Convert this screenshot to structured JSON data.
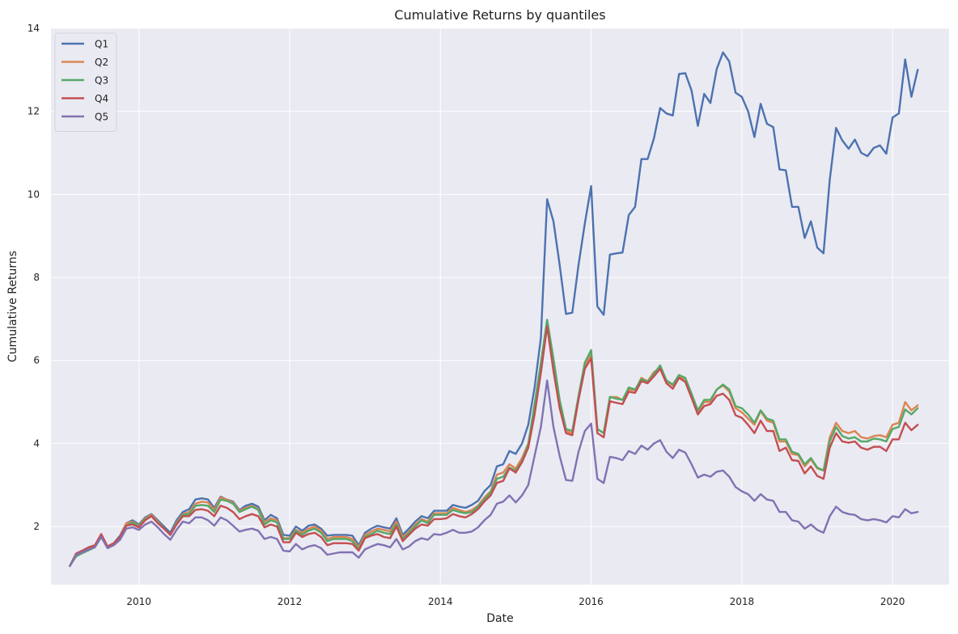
{
  "chart_data": {
    "type": "line",
    "title": "Cumulative Returns by quantiles",
    "xlabel": "Date",
    "ylabel": "Cumulative Returns",
    "xlim": [
      "2008-11-01",
      "2020-10-01"
    ],
    "ylim": [
      0.6,
      14
    ],
    "x_ticks": [
      "2010",
      "2012",
      "2014",
      "2016",
      "2018",
      "2020"
    ],
    "y_ticks": [
      2,
      4,
      6,
      8,
      10,
      12,
      14
    ],
    "grid": true,
    "legend": "top-left",
    "x": [
      "2009-02",
      "2009-03",
      "2009-04",
      "2009-05",
      "2009-06",
      "2009-07",
      "2009-08",
      "2009-09",
      "2009-10",
      "2009-11",
      "2009-12",
      "2010-01",
      "2010-02",
      "2010-03",
      "2010-04",
      "2010-05",
      "2010-06",
      "2010-07",
      "2010-08",
      "2010-09",
      "2010-10",
      "2010-11",
      "2010-12",
      "2011-01",
      "2011-02",
      "2011-03",
      "2011-04",
      "2011-05",
      "2011-06",
      "2011-07",
      "2011-08",
      "2011-09",
      "2011-10",
      "2011-11",
      "2011-12",
      "2012-01",
      "2012-02",
      "2012-03",
      "2012-04",
      "2012-05",
      "2012-06",
      "2012-07",
      "2012-08",
      "2012-09",
      "2012-10",
      "2012-11",
      "2012-12",
      "2013-01",
      "2013-02",
      "2013-03",
      "2013-04",
      "2013-05",
      "2013-06",
      "2013-07",
      "2013-08",
      "2013-09",
      "2013-10",
      "2013-11",
      "2013-12",
      "2014-01",
      "2014-02",
      "2014-03",
      "2014-04",
      "2014-05",
      "2014-06",
      "2014-07",
      "2014-08",
      "2014-09",
      "2014-10",
      "2014-11",
      "2014-12",
      "2015-01",
      "2015-02",
      "2015-03",
      "2015-04",
      "2015-05",
      "2015-06",
      "2015-07",
      "2015-08",
      "2015-09",
      "2015-10",
      "2015-11",
      "2015-12",
      "2016-01",
      "2016-02",
      "2016-03",
      "2016-04",
      "2016-05",
      "2016-06",
      "2016-07",
      "2016-08",
      "2016-09",
      "2016-10",
      "2016-11",
      "2016-12",
      "2017-01",
      "2017-02",
      "2017-03",
      "2017-04",
      "2017-05",
      "2017-06",
      "2017-07",
      "2017-08",
      "2017-09",
      "2017-10",
      "2017-11",
      "2017-12",
      "2018-01",
      "2018-02",
      "2018-03",
      "2018-04",
      "2018-05",
      "2018-06",
      "2018-07",
      "2018-08",
      "2018-09",
      "2018-10",
      "2018-11",
      "2018-12",
      "2019-01",
      "2019-02",
      "2019-03",
      "2019-04",
      "2019-05",
      "2019-06",
      "2019-07",
      "2019-08",
      "2019-09",
      "2019-10",
      "2019-11",
      "2019-12",
      "2020-01",
      "2020-02",
      "2020-03",
      "2020-04",
      "2020-05"
    ],
    "series": [
      {
        "name": "Q1",
        "color": "#4c72b0",
        "values": [
          1.05,
          1.33,
          1.42,
          1.5,
          1.55,
          1.78,
          1.52,
          1.6,
          1.78,
          2.08,
          2.15,
          2.05,
          2.22,
          2.3,
          2.15,
          2.0,
          1.85,
          2.15,
          2.35,
          2.42,
          2.65,
          2.68,
          2.65,
          2.45,
          2.72,
          2.65,
          2.6,
          2.4,
          2.5,
          2.55,
          2.48,
          2.15,
          2.28,
          2.2,
          1.8,
          1.78,
          2.0,
          1.9,
          2.02,
          2.05,
          1.95,
          1.78,
          1.8,
          1.8,
          1.8,
          1.78,
          1.55,
          1.85,
          1.95,
          2.02,
          1.98,
          1.95,
          2.2,
          1.8,
          1.95,
          2.12,
          2.25,
          2.2,
          2.38,
          2.38,
          2.38,
          2.52,
          2.48,
          2.45,
          2.52,
          2.62,
          2.85,
          3.0,
          3.45,
          3.5,
          3.82,
          3.75,
          4.0,
          4.45,
          5.35,
          6.55,
          9.88,
          9.35,
          8.3,
          7.12,
          7.15,
          8.3,
          9.3,
          10.2,
          7.3,
          7.1,
          8.55,
          8.58,
          8.6,
          9.5,
          9.7,
          10.85,
          10.85,
          11.35,
          12.08,
          11.95,
          11.9,
          12.9,
          12.92,
          12.5,
          11.65,
          12.42,
          12.2,
          13.02,
          13.42,
          13.2,
          12.45,
          12.35,
          12.0,
          11.38,
          12.18,
          11.7,
          11.62,
          10.6,
          10.58,
          9.7,
          9.7,
          8.95,
          9.35,
          8.72,
          8.58,
          10.35,
          11.6,
          11.3,
          11.1,
          11.32,
          11.0,
          10.92,
          11.12,
          11.18,
          10.98,
          11.85,
          11.95,
          13.25,
          12.35,
          13.0
        ]
      },
      {
        "name": "Q2",
        "color": "#dd8452",
        "values": [
          1.05,
          1.3,
          1.38,
          1.45,
          1.52,
          1.8,
          1.5,
          1.58,
          1.75,
          2.08,
          2.12,
          2.02,
          2.2,
          2.28,
          2.12,
          1.95,
          1.8,
          2.1,
          2.3,
          2.35,
          2.55,
          2.6,
          2.58,
          2.4,
          2.7,
          2.65,
          2.58,
          2.38,
          2.45,
          2.5,
          2.42,
          2.1,
          2.2,
          2.15,
          1.72,
          1.72,
          1.92,
          1.85,
          1.95,
          2.0,
          1.9,
          1.7,
          1.75,
          1.75,
          1.75,
          1.7,
          1.5,
          1.8,
          1.88,
          1.95,
          1.92,
          1.88,
          2.12,
          1.75,
          1.88,
          2.05,
          2.18,
          2.12,
          2.32,
          2.32,
          2.32,
          2.45,
          2.4,
          2.35,
          2.4,
          2.5,
          2.7,
          2.85,
          3.25,
          3.3,
          3.5,
          3.4,
          3.65,
          4.0,
          4.9,
          5.9,
          6.92,
          6.0,
          5.0,
          4.3,
          4.25,
          5.1,
          5.85,
          6.15,
          4.35,
          4.25,
          5.12,
          5.12,
          5.05,
          5.3,
          5.28,
          5.58,
          5.5,
          5.72,
          5.82,
          5.5,
          5.4,
          5.6,
          5.55,
          5.15,
          4.75,
          5.0,
          5.0,
          5.3,
          5.4,
          5.25,
          4.85,
          4.75,
          4.6,
          4.45,
          4.78,
          4.55,
          4.5,
          4.05,
          4.05,
          3.75,
          3.72,
          3.45,
          3.62,
          3.4,
          3.35,
          4.15,
          4.5,
          4.3,
          4.25,
          4.3,
          4.15,
          4.12,
          4.18,
          4.2,
          4.15,
          4.45,
          4.5,
          5.0,
          4.8,
          4.92
        ]
      },
      {
        "name": "Q3",
        "color": "#55a868",
        "values": [
          1.05,
          1.28,
          1.36,
          1.43,
          1.5,
          1.75,
          1.48,
          1.55,
          1.72,
          2.02,
          2.1,
          2.0,
          2.18,
          2.25,
          2.1,
          1.95,
          1.8,
          2.08,
          2.28,
          2.3,
          2.5,
          2.52,
          2.5,
          2.35,
          2.65,
          2.62,
          2.55,
          2.35,
          2.42,
          2.48,
          2.4,
          2.05,
          2.15,
          2.1,
          1.7,
          1.7,
          1.9,
          1.8,
          1.9,
          1.95,
          1.85,
          1.65,
          1.7,
          1.7,
          1.7,
          1.65,
          1.45,
          1.75,
          1.82,
          1.9,
          1.85,
          1.82,
          2.05,
          1.7,
          1.85,
          2.0,
          2.15,
          2.08,
          2.28,
          2.28,
          2.28,
          2.4,
          2.35,
          2.32,
          2.35,
          2.48,
          2.65,
          2.82,
          3.15,
          3.2,
          3.42,
          3.35,
          3.58,
          3.98,
          4.95,
          5.95,
          6.98,
          6.05,
          5.05,
          4.35,
          4.3,
          5.15,
          5.95,
          6.25,
          4.35,
          4.25,
          5.12,
          5.08,
          5.05,
          5.35,
          5.3,
          5.55,
          5.48,
          5.68,
          5.88,
          5.52,
          5.42,
          5.65,
          5.58,
          5.2,
          4.8,
          5.05,
          5.05,
          5.3,
          5.42,
          5.3,
          4.9,
          4.85,
          4.7,
          4.5,
          4.8,
          4.6,
          4.55,
          4.1,
          4.1,
          3.8,
          3.75,
          3.5,
          3.65,
          3.42,
          3.35,
          4.05,
          4.4,
          4.18,
          4.12,
          4.15,
          4.05,
          4.05,
          4.12,
          4.1,
          4.05,
          4.35,
          4.4,
          4.82,
          4.7,
          4.85
        ]
      },
      {
        "name": "Q4",
        "color": "#c44e52",
        "values": [
          1.05,
          1.35,
          1.42,
          1.5,
          1.55,
          1.82,
          1.52,
          1.6,
          1.75,
          2.02,
          2.05,
          1.98,
          2.15,
          2.25,
          2.08,
          1.95,
          1.8,
          2.05,
          2.25,
          2.25,
          2.4,
          2.42,
          2.38,
          2.25,
          2.5,
          2.45,
          2.35,
          2.18,
          2.25,
          2.3,
          2.25,
          1.98,
          2.05,
          2.0,
          1.62,
          1.62,
          1.85,
          1.75,
          1.82,
          1.85,
          1.75,
          1.55,
          1.6,
          1.6,
          1.6,
          1.58,
          1.42,
          1.72,
          1.78,
          1.82,
          1.75,
          1.72,
          2.0,
          1.65,
          1.8,
          1.95,
          2.05,
          2.02,
          2.18,
          2.18,
          2.2,
          2.3,
          2.25,
          2.22,
          2.3,
          2.42,
          2.6,
          2.75,
          3.05,
          3.1,
          3.4,
          3.3,
          3.55,
          3.9,
          4.7,
          5.7,
          6.82,
          5.75,
          4.85,
          4.25,
          4.2,
          5.05,
          5.8,
          6.05,
          4.25,
          4.15,
          5.02,
          4.98,
          4.95,
          5.25,
          5.22,
          5.5,
          5.45,
          5.62,
          5.8,
          5.45,
          5.32,
          5.58,
          5.48,
          5.1,
          4.7,
          4.9,
          4.95,
          5.15,
          5.2,
          5.05,
          4.68,
          4.62,
          4.45,
          4.25,
          4.55,
          4.3,
          4.3,
          3.82,
          3.9,
          3.6,
          3.58,
          3.28,
          3.45,
          3.22,
          3.15,
          3.9,
          4.25,
          4.05,
          4.02,
          4.05,
          3.9,
          3.85,
          3.92,
          3.92,
          3.82,
          4.1,
          4.1,
          4.5,
          4.32,
          4.45
        ]
      },
      {
        "name": "Q5",
        "color": "#8172b2",
        "values": [
          1.05,
          1.32,
          1.38,
          1.45,
          1.5,
          1.75,
          1.48,
          1.55,
          1.68,
          1.95,
          1.98,
          1.92,
          2.05,
          2.12,
          1.98,
          1.82,
          1.68,
          1.92,
          2.12,
          2.08,
          2.22,
          2.22,
          2.15,
          2.02,
          2.22,
          2.15,
          2.02,
          1.88,
          1.92,
          1.95,
          1.9,
          1.7,
          1.75,
          1.7,
          1.42,
          1.4,
          1.58,
          1.45,
          1.52,
          1.55,
          1.48,
          1.32,
          1.35,
          1.38,
          1.38,
          1.38,
          1.25,
          1.45,
          1.52,
          1.58,
          1.55,
          1.5,
          1.7,
          1.45,
          1.52,
          1.65,
          1.72,
          1.68,
          1.82,
          1.8,
          1.85,
          1.92,
          1.85,
          1.85,
          1.88,
          1.98,
          2.15,
          2.28,
          2.55,
          2.6,
          2.75,
          2.58,
          2.75,
          3.0,
          3.7,
          4.4,
          5.52,
          4.4,
          3.7,
          3.12,
          3.1,
          3.8,
          4.3,
          4.48,
          3.15,
          3.05,
          3.68,
          3.65,
          3.6,
          3.82,
          3.75,
          3.95,
          3.85,
          4.0,
          4.08,
          3.8,
          3.65,
          3.85,
          3.78,
          3.5,
          3.18,
          3.25,
          3.2,
          3.32,
          3.35,
          3.2,
          2.95,
          2.85,
          2.78,
          2.62,
          2.78,
          2.65,
          2.62,
          2.35,
          2.35,
          2.15,
          2.12,
          1.95,
          2.05,
          1.92,
          1.85,
          2.25,
          2.48,
          2.35,
          2.3,
          2.28,
          2.18,
          2.15,
          2.18,
          2.15,
          2.1,
          2.25,
          2.22,
          2.42,
          2.32,
          2.35
        ]
      }
    ]
  }
}
